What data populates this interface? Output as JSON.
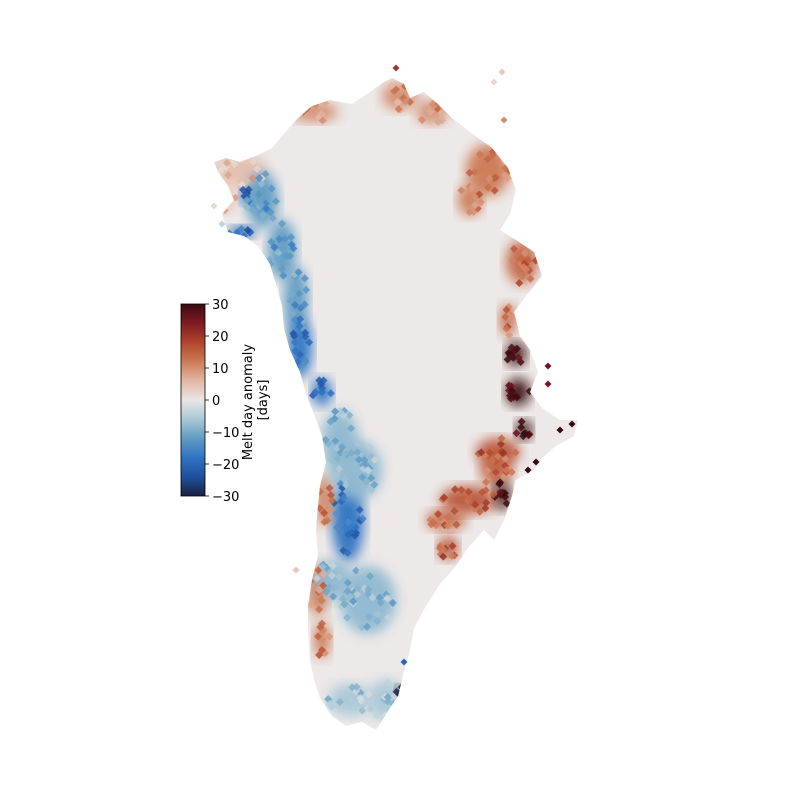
{
  "chart_data": {
    "type": "heatmap",
    "title": "",
    "colorbar": {
      "label_line1": "Melt day anomaly",
      "label_line2": "[days]",
      "range": [
        -30,
        30
      ],
      "ticks": [
        30,
        20,
        10,
        0,
        -10,
        -20,
        -30
      ],
      "tick_labels": [
        "30",
        "20",
        "10",
        "0",
        "−10",
        "−20",
        "−30"
      ],
      "placement": "left",
      "colormap": [
        "#1b1f3f",
        "#1f4f9e",
        "#2f73c2",
        "#5f9bc3",
        "#a9c8d6",
        "#e9e6e4",
        "#e3b7a4",
        "#cd7a55",
        "#b1452c",
        "#7f1a22",
        "#3b0a10"
      ]
    },
    "background": "#ffffff",
    "land_base_color": "#ece9e8",
    "anomaly_regions": [
      {
        "region": "northwest coast",
        "value": 5
      },
      {
        "region": "northwest margin near 76N",
        "value": -20
      },
      {
        "region": "west coast interior margin",
        "value": -12
      },
      {
        "region": "central west margin",
        "value": -18
      },
      {
        "region": "southwest coast",
        "value": 12
      },
      {
        "region": "southwest interior margin",
        "value": -8
      },
      {
        "region": "south tip",
        "value": -6
      },
      {
        "region": "far south east",
        "value": -30
      },
      {
        "region": "north coast",
        "value": 10
      },
      {
        "region": "northeast coast",
        "value": 12
      },
      {
        "region": "east coast upper",
        "value": 14
      },
      {
        "region": "east coast middle",
        "value": 30
      },
      {
        "region": "southeast coast",
        "value": 16
      },
      {
        "region": "ice sheet interior",
        "value": 0
      }
    ]
  }
}
